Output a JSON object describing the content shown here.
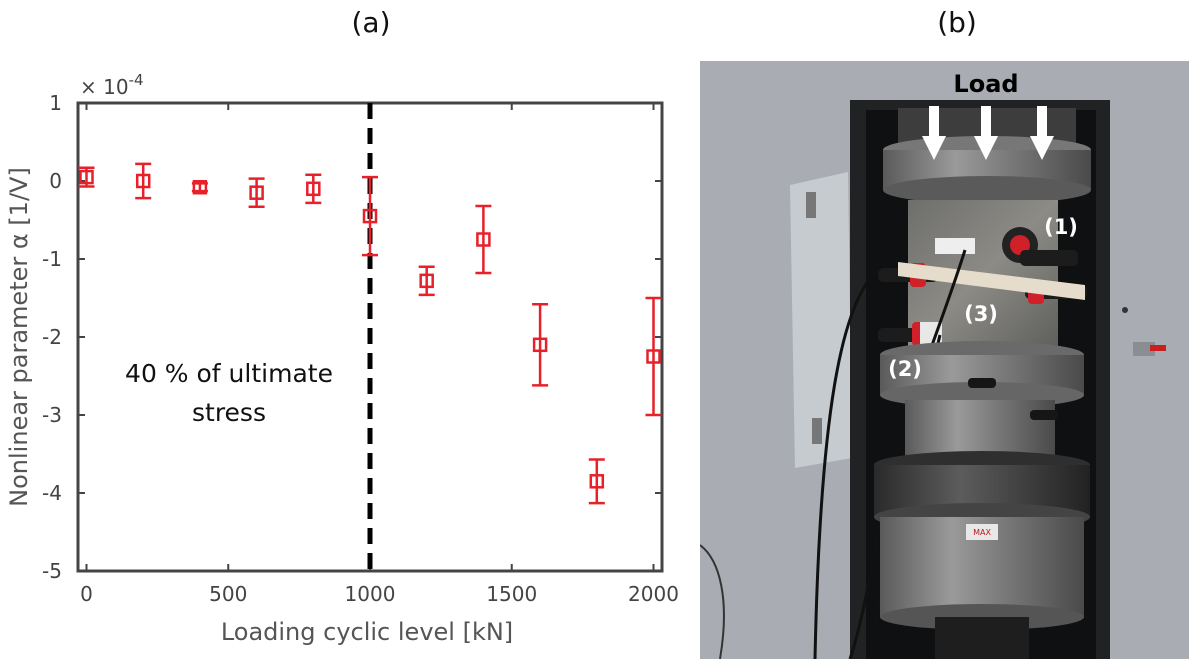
{
  "panel_a_label": "(a)",
  "panel_b_label": "(b)",
  "chart_data": {
    "type": "scatter",
    "title": "",
    "xlabel": "Loading cyclic level [kN]",
    "ylabel": "Nonlinear parameter α [1/V]",
    "y_multiplier": "× 10",
    "y_exponent": "-4",
    "xlim": [
      -30,
      2030
    ],
    "ylim": [
      -5,
      1
    ],
    "x_ticks": [
      0,
      500,
      1000,
      1500,
      2000
    ],
    "y_ticks": [
      1,
      0,
      -1,
      -2,
      -3,
      -4,
      -5
    ],
    "grid": false,
    "marker": "square",
    "color": "#e8202a",
    "points": [
      {
        "x": 0,
        "y": 0.05,
        "err": 0.12
      },
      {
        "x": 200,
        "y": 0.0,
        "err": 0.22
      },
      {
        "x": 400,
        "y": -0.08,
        "err": 0.05
      },
      {
        "x": 600,
        "y": -0.15,
        "err": 0.18
      },
      {
        "x": 800,
        "y": -0.1,
        "err": 0.18
      },
      {
        "x": 1000,
        "y": -0.45,
        "err": 0.5
      },
      {
        "x": 1200,
        "y": -1.28,
        "err": 0.18
      },
      {
        "x": 1400,
        "y": -0.75,
        "err": 0.43
      },
      {
        "x": 1600,
        "y": -2.1,
        "err": 0.52
      },
      {
        "x": 1800,
        "y": -3.85,
        "err": 0.28
      },
      {
        "x": 2000,
        "y": -2.25,
        "err": 0.75
      }
    ],
    "threshold_x": 1000,
    "annotation_line1": "40 % of ultimate",
    "annotation_line2": "stress"
  },
  "photo": {
    "load_label": "Load",
    "label_1": "(1)",
    "label_2": "(2)",
    "label_3": "(3)",
    "max_label": "MAX"
  }
}
